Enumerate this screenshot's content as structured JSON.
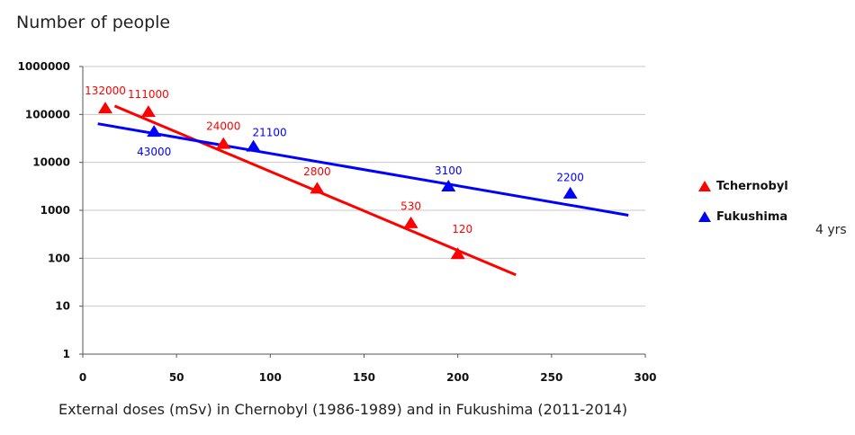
{
  "chart_data": {
    "type": "scatter",
    "title": "",
    "ylabel": "Number of people",
    "xlabel": "External doses (mSv) in Chernobyl (1986-1989) and in Fukushima (2011-2014)",
    "xlim": [
      0,
      300
    ],
    "xticks": [
      "0",
      "50",
      "100",
      "150",
      "200",
      "250",
      "300"
    ],
    "ylim": [
      1,
      1000000
    ],
    "yscale": "log",
    "yticks": [
      "1",
      "10",
      "100",
      "1000",
      "10000",
      "100000",
      "1000000"
    ],
    "grid": "horizontal",
    "legend_position": "right",
    "series": [
      {
        "name": "Tchernobyl",
        "color": "#ff0000",
        "marker": "triangle",
        "points": [
          {
            "x": 12,
            "y": 132000,
            "label": "132000"
          },
          {
            "x": 35,
            "y": 111000,
            "label": "111000"
          },
          {
            "x": 75,
            "y": 24000,
            "label": "24000"
          },
          {
            "x": 125,
            "y": 2800,
            "label": "2800"
          },
          {
            "x": 175,
            "y": 530,
            "label": "530"
          },
          {
            "x": 200,
            "y": 120,
            "label": "120"
          }
        ],
        "trendline": {
          "x": [
            17,
            231
          ],
          "y": [
            150000,
            45
          ]
        }
      },
      {
        "name": "Fukushima",
        "color": "#0000ff",
        "marker": "triangle",
        "points": [
          {
            "x": 38,
            "y": 43000,
            "label": "43000"
          },
          {
            "x": 91,
            "y": 21100,
            "label": "21100"
          },
          {
            "x": 195,
            "y": 3100,
            "label": "3100"
          },
          {
            "x": 260,
            "y": 2200,
            "label": "2200"
          }
        ],
        "trendline": {
          "x": [
            8,
            291
          ],
          "y": [
            64000,
            790
          ]
        }
      }
    ],
    "note": "4 yrs"
  }
}
